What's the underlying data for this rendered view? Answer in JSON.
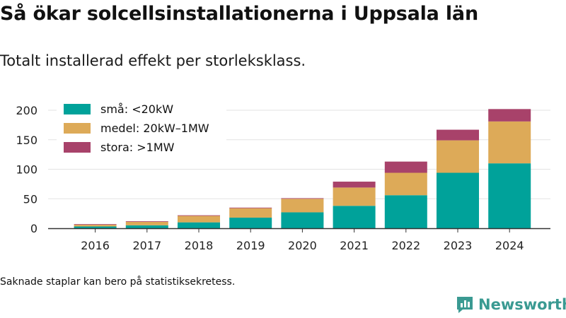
{
  "title": "Så ökar solcellsinstallationerna i Uppsala län",
  "subtitle": "Totalt installerad effekt per storleksklass.",
  "footnote": "Saknade staplar kan bero på statistiksekretess.",
  "brand": {
    "name": "Newsworthy",
    "icon": "newsworthy-logo-icon"
  },
  "colors": {
    "small": "#00a29a",
    "medium": "#ddaa58",
    "large": "#a8426a",
    "grid": "#e3e3e3",
    "axis": "#333333",
    "brand": "#3a9a92"
  },
  "chart_data": {
    "type": "bar",
    "stacked": true,
    "categories": [
      "2016",
      "2017",
      "2018",
      "2019",
      "2020",
      "2021",
      "2022",
      "2023",
      "2024"
    ],
    "series": [
      {
        "name": "små: <20kW",
        "color": "#00a29a",
        "values": [
          3,
          5,
          10,
          18,
          27,
          38,
          56,
          94,
          110
        ]
      },
      {
        "name": "medel: 20kW–1MW",
        "color": "#ddaa58",
        "values": [
          3,
          6,
          11,
          16,
          23,
          31,
          38,
          55,
          71
        ]
      },
      {
        "name": "stora: >1MW",
        "color": "#a8426a",
        "values": [
          1,
          1,
          1,
          1,
          1,
          10,
          19,
          18,
          21
        ]
      }
    ],
    "yticks": [
      "0",
      "50",
      "100",
      "150",
      "200"
    ],
    "ylim": [
      0,
      200
    ],
    "grid": true,
    "legend": "top-left"
  }
}
